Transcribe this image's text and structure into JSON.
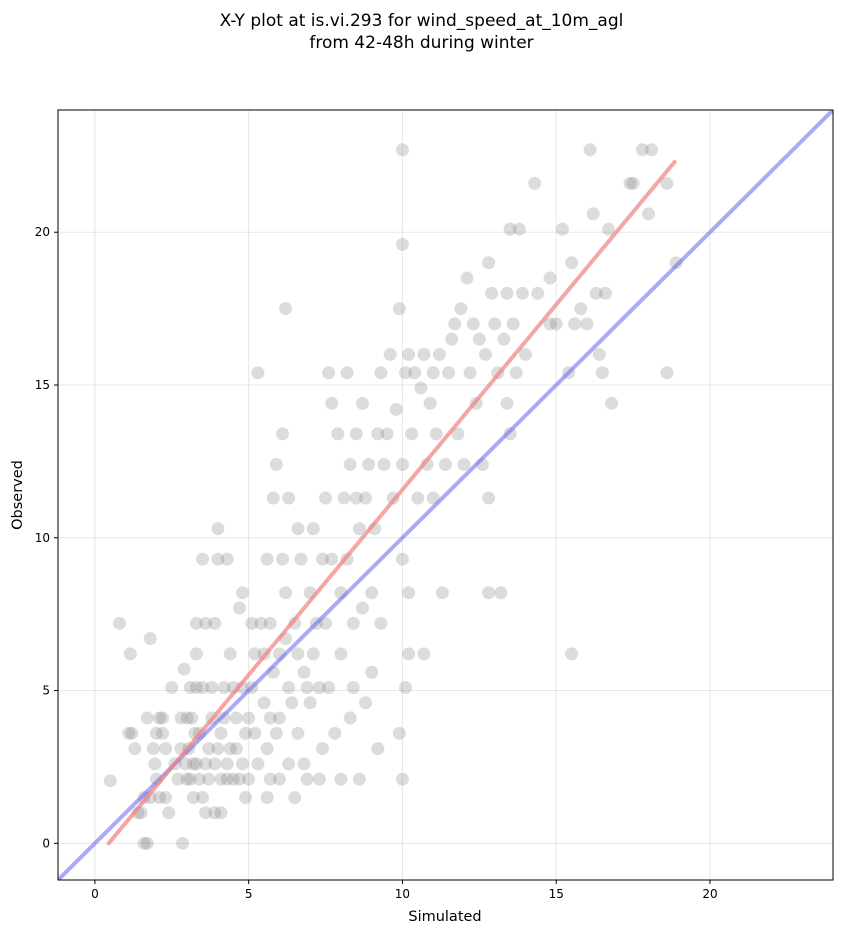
{
  "chart_data": {
    "type": "scatter",
    "title": "X-Y plot at is.vi.293 for wind_speed_at_10m_agl",
    "subtitle": "from 42-48h during winter",
    "xlabel": "Simulated",
    "ylabel": "Observed",
    "xlim": [
      -1.2,
      24
    ],
    "ylim": [
      -1.2,
      24
    ],
    "xticks": [
      "0",
      "5",
      "10",
      "15",
      "20"
    ],
    "yticks": [
      "0",
      "5",
      "10",
      "15",
      "20"
    ],
    "grid": true,
    "colors": {
      "points": "#808080",
      "fit_line": "#f08080",
      "identity_line": "#6464f0"
    },
    "fit_line": {
      "x": [
        0.45,
        18.85
      ],
      "y": [
        0.0,
        22.3
      ]
    },
    "identity_line": {
      "x": [
        -1.2,
        24
      ],
      "y": [
        -1.2,
        24
      ]
    },
    "points": [
      [
        0.5,
        2.05
      ],
      [
        0.8,
        7.2
      ],
      [
        1.1,
        3.6
      ],
      [
        1.15,
        6.2
      ],
      [
        1.2,
        3.6
      ],
      [
        1.3,
        3.1
      ],
      [
        1.4,
        1.0
      ],
      [
        1.5,
        1.0
      ],
      [
        1.6,
        0.0
      ],
      [
        1.6,
        1.5
      ],
      [
        1.7,
        0.0
      ],
      [
        1.7,
        4.1
      ],
      [
        1.8,
        1.5
      ],
      [
        1.8,
        6.7
      ],
      [
        1.9,
        3.1
      ],
      [
        1.95,
        2.6
      ],
      [
        2.0,
        3.6
      ],
      [
        2.0,
        2.1
      ],
      [
        2.1,
        4.1
      ],
      [
        2.1,
        1.5
      ],
      [
        2.2,
        3.6
      ],
      [
        2.2,
        4.1
      ],
      [
        2.3,
        3.1
      ],
      [
        2.3,
        1.5
      ],
      [
        2.4,
        1.0
      ],
      [
        2.5,
        5.1
      ],
      [
        2.6,
        2.6
      ],
      [
        2.7,
        2.1
      ],
      [
        2.8,
        3.1
      ],
      [
        2.8,
        4.1
      ],
      [
        2.85,
        0.0
      ],
      [
        2.9,
        5.7
      ],
      [
        2.95,
        2.6
      ],
      [
        3.0,
        4.1
      ],
      [
        3.0,
        2.1
      ],
      [
        3.05,
        3.1
      ],
      [
        3.1,
        5.1
      ],
      [
        3.1,
        2.1
      ],
      [
        3.15,
        4.1
      ],
      [
        3.2,
        2.6
      ],
      [
        3.2,
        1.5
      ],
      [
        3.25,
        3.6
      ],
      [
        3.3,
        7.2
      ],
      [
        3.3,
        5.1
      ],
      [
        3.3,
        6.2
      ],
      [
        3.3,
        2.6
      ],
      [
        3.4,
        2.1
      ],
      [
        3.4,
        3.6
      ],
      [
        3.5,
        1.5
      ],
      [
        3.5,
        5.1
      ],
      [
        3.5,
        9.3
      ],
      [
        3.6,
        2.6
      ],
      [
        3.6,
        1.0
      ],
      [
        3.6,
        7.2
      ],
      [
        3.7,
        2.1
      ],
      [
        3.7,
        3.1
      ],
      [
        3.8,
        4.1
      ],
      [
        3.8,
        5.1
      ],
      [
        3.9,
        1.0
      ],
      [
        3.9,
        7.2
      ],
      [
        3.9,
        2.6
      ],
      [
        4.0,
        3.1
      ],
      [
        4.0,
        9.3
      ],
      [
        4.0,
        10.3
      ],
      [
        4.1,
        3.6
      ],
      [
        4.1,
        2.1
      ],
      [
        4.1,
        1.0
      ],
      [
        4.2,
        4.1
      ],
      [
        4.2,
        5.1
      ],
      [
        4.3,
        2.6
      ],
      [
        4.3,
        9.3
      ],
      [
        4.3,
        2.1
      ],
      [
        4.4,
        3.1
      ],
      [
        4.4,
        6.2
      ],
      [
        4.5,
        5.1
      ],
      [
        4.5,
        2.1
      ],
      [
        4.6,
        4.1
      ],
      [
        4.6,
        3.1
      ],
      [
        4.7,
        2.1
      ],
      [
        4.7,
        7.7
      ],
      [
        4.8,
        5.1
      ],
      [
        4.8,
        2.6
      ],
      [
        4.8,
        8.2
      ],
      [
        4.9,
        3.6
      ],
      [
        4.9,
        1.5
      ],
      [
        5.0,
        4.1
      ],
      [
        5.0,
        2.1
      ],
      [
        5.1,
        7.2
      ],
      [
        5.1,
        5.1
      ],
      [
        5.2,
        6.2
      ],
      [
        5.2,
        3.6
      ],
      [
        5.3,
        15.4
      ],
      [
        5.3,
        2.6
      ],
      [
        5.4,
        7.2
      ],
      [
        5.5,
        6.2
      ],
      [
        5.5,
        4.6
      ],
      [
        5.6,
        3.1
      ],
      [
        5.6,
        1.5
      ],
      [
        5.6,
        9.3
      ],
      [
        5.7,
        7.2
      ],
      [
        5.7,
        4.1
      ],
      [
        5.7,
        2.1
      ],
      [
        5.8,
        11.3
      ],
      [
        5.8,
        5.6
      ],
      [
        5.9,
        12.4
      ],
      [
        5.9,
        3.6
      ],
      [
        6.0,
        6.2
      ],
      [
        6.0,
        2.1
      ],
      [
        6.0,
        4.1
      ],
      [
        6.1,
        9.3
      ],
      [
        6.1,
        13.4
      ],
      [
        6.2,
        6.7
      ],
      [
        6.2,
        17.5
      ],
      [
        6.2,
        8.2
      ],
      [
        6.3,
        5.1
      ],
      [
        6.3,
        11.3
      ],
      [
        6.3,
        2.6
      ],
      [
        6.4,
        4.6
      ],
      [
        6.5,
        7.2
      ],
      [
        6.5,
        1.5
      ],
      [
        6.6,
        10.3
      ],
      [
        6.6,
        6.2
      ],
      [
        6.6,
        3.6
      ],
      [
        6.7,
        9.3
      ],
      [
        6.8,
        5.6
      ],
      [
        6.8,
        2.6
      ],
      [
        6.9,
        5.1
      ],
      [
        6.9,
        2.1
      ],
      [
        7.0,
        8.2
      ],
      [
        7.0,
        4.6
      ],
      [
        7.1,
        10.3
      ],
      [
        7.1,
        6.2
      ],
      [
        7.2,
        7.2
      ],
      [
        7.3,
        5.1
      ],
      [
        7.3,
        2.1
      ],
      [
        7.4,
        9.3
      ],
      [
        7.4,
        3.1
      ],
      [
        7.5,
        11.3
      ],
      [
        7.5,
        7.2
      ],
      [
        7.6,
        15.4
      ],
      [
        7.6,
        5.1
      ],
      [
        7.7,
        14.4
      ],
      [
        7.7,
        9.3
      ],
      [
        7.8,
        3.6
      ],
      [
        7.9,
        13.4
      ],
      [
        8.0,
        8.2
      ],
      [
        8.0,
        6.2
      ],
      [
        8.0,
        2.1
      ],
      [
        8.1,
        11.3
      ],
      [
        8.2,
        9.3
      ],
      [
        8.2,
        15.4
      ],
      [
        8.3,
        12.4
      ],
      [
        8.3,
        4.1
      ],
      [
        8.4,
        7.2
      ],
      [
        8.4,
        5.1
      ],
      [
        8.5,
        13.4
      ],
      [
        8.5,
        11.3
      ],
      [
        8.6,
        10.3
      ],
      [
        8.6,
        2.1
      ],
      [
        8.7,
        14.4
      ],
      [
        8.7,
        7.7
      ],
      [
        8.8,
        11.3
      ],
      [
        8.8,
        4.6
      ],
      [
        8.9,
        12.4
      ],
      [
        9.0,
        8.2
      ],
      [
        9.0,
        5.6
      ],
      [
        9.1,
        10.3
      ],
      [
        9.2,
        13.4
      ],
      [
        9.2,
        3.1
      ],
      [
        9.3,
        15.4
      ],
      [
        9.3,
        7.2
      ],
      [
        9.4,
        12.4
      ],
      [
        9.5,
        13.4
      ],
      [
        9.6,
        16.0
      ],
      [
        9.7,
        11.3
      ],
      [
        9.8,
        14.2
      ],
      [
        9.9,
        17.5
      ],
      [
        9.9,
        3.6
      ],
      [
        10.0,
        19.6
      ],
      [
        10.0,
        12.4
      ],
      [
        10.0,
        9.3
      ],
      [
        10.0,
        2.1
      ],
      [
        10.1,
        15.4
      ],
      [
        10.1,
        5.1
      ],
      [
        10.2,
        16.0
      ],
      [
        10.2,
        8.2
      ],
      [
        10.2,
        6.2
      ],
      [
        10.3,
        13.4
      ],
      [
        10.4,
        15.4
      ],
      [
        10.5,
        11.3
      ],
      [
        10.6,
        14.9
      ],
      [
        10.7,
        16.0
      ],
      [
        10.7,
        6.2
      ],
      [
        10.8,
        12.4
      ],
      [
        10.9,
        14.4
      ],
      [
        11.0,
        15.4
      ],
      [
        11.0,
        11.3
      ],
      [
        11.1,
        13.4
      ],
      [
        11.2,
        16.0
      ],
      [
        11.3,
        8.2
      ],
      [
        11.4,
        12.4
      ],
      [
        11.5,
        15.4
      ],
      [
        11.6,
        16.5
      ],
      [
        11.7,
        17.0
      ],
      [
        11.8,
        13.4
      ],
      [
        11.9,
        17.5
      ],
      [
        12.0,
        12.4
      ],
      [
        12.1,
        18.5
      ],
      [
        12.2,
        15.4
      ],
      [
        12.3,
        17.0
      ],
      [
        12.4,
        14.4
      ],
      [
        12.5,
        16.5
      ],
      [
        12.6,
        12.4
      ],
      [
        12.7,
        16.0
      ],
      [
        12.8,
        19.0
      ],
      [
        12.8,
        11.3
      ],
      [
        12.8,
        8.2
      ],
      [
        12.9,
        18.0
      ],
      [
        13.0,
        17.0
      ],
      [
        13.1,
        15.4
      ],
      [
        13.2,
        8.2
      ],
      [
        13.3,
        16.5
      ],
      [
        13.4,
        18.0
      ],
      [
        13.4,
        14.4
      ],
      [
        13.5,
        20.1
      ],
      [
        13.5,
        13.4
      ],
      [
        13.6,
        17.0
      ],
      [
        13.7,
        15.4
      ],
      [
        13.8,
        20.1
      ],
      [
        13.9,
        18.0
      ],
      [
        14.0,
        16.0
      ],
      [
        14.3,
        21.6
      ],
      [
        14.4,
        18.0
      ],
      [
        14.8,
        18.5
      ],
      [
        15.0,
        17.0
      ],
      [
        15.2,
        20.1
      ],
      [
        15.4,
        15.4
      ],
      [
        15.5,
        19.0
      ],
      [
        15.5,
        6.2
      ],
      [
        15.6,
        17.0
      ],
      [
        15.8,
        17.5
      ],
      [
        16.0,
        17.0
      ],
      [
        16.1,
        22.7
      ],
      [
        16.2,
        20.6
      ],
      [
        16.3,
        18.0
      ],
      [
        16.4,
        16.0
      ],
      [
        16.5,
        15.4
      ],
      [
        16.6,
        18.0
      ],
      [
        16.7,
        20.1
      ],
      [
        16.8,
        14.4
      ],
      [
        17.4,
        21.6
      ],
      [
        17.5,
        21.6
      ],
      [
        17.8,
        22.7
      ],
      [
        18.0,
        20.6
      ],
      [
        18.1,
        22.7
      ],
      [
        18.6,
        21.6
      ],
      [
        18.6,
        15.4
      ],
      [
        18.9,
        19.0
      ],
      [
        10.0,
        22.7
      ],
      [
        14.8,
        17.0
      ]
    ]
  }
}
